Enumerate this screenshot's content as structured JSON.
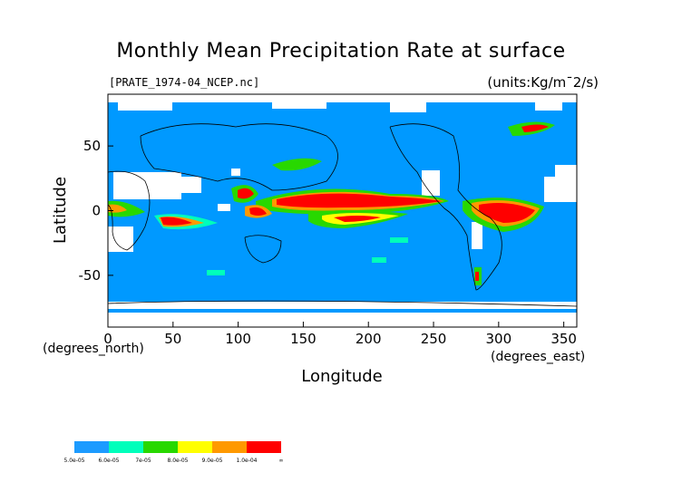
{
  "title": "Monthly Mean Precipitation Rate at surface",
  "file_label": "[PRATE_1974-04_NCEP.nc]",
  "units_label": "(units:Kg/m¯2/s)",
  "map": {
    "xlabel": "Longitude",
    "ylabel": "Latitude",
    "x_unit_label": "(degrees_east)",
    "y_unit_label": "(degrees_north)",
    "x_ticks": [
      0,
      50,
      100,
      150,
      200,
      250,
      300,
      350
    ],
    "y_ticks": [
      -50,
      0,
      50
    ],
    "x_range": [
      0,
      360
    ],
    "y_range": [
      -90,
      90
    ],
    "colors": {
      "background": "#0099ff",
      "missing": "#ffffff"
    }
  },
  "colorbar": {
    "labels": [
      "5.0e-05",
      "6.0e-05",
      "7e-05",
      "8.0e-05",
      "9.0e-05",
      "1.0e-04",
      "∞"
    ],
    "colors": [
      "#1c9bff",
      "#00ffbb",
      "#28d800",
      "#ffff00",
      "#ff9900",
      "#ff0000"
    ]
  }
}
